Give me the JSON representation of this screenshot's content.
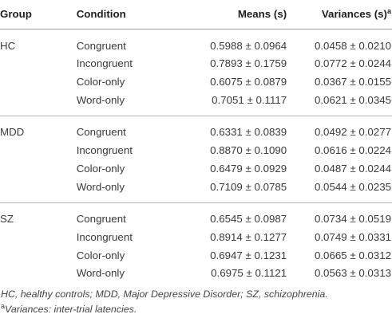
{
  "table": {
    "headers": {
      "group": "Group",
      "condition": "Condition",
      "means": "Means (s)",
      "variances": "Variances (s)",
      "variances_sup": "a"
    },
    "groups": [
      {
        "name": "HC",
        "rows": [
          {
            "condition": "Congruent",
            "mean": "0.5988 ± 0.0964",
            "variance": "0.0458 ± 0.0210"
          },
          {
            "condition": "Incongruent",
            "mean": "0.7893 ± 0.1759",
            "variance": "0.0772 ± 0.0244"
          },
          {
            "condition": "Color-only",
            "mean": "0.6075 ± 0.0879",
            "variance": "0.0367 ± 0.0155"
          },
          {
            "condition": "Word-only",
            "mean": "0.7051 ± 0.1117",
            "variance": "0.0621 ± 0.0345"
          }
        ]
      },
      {
        "name": "MDD",
        "rows": [
          {
            "condition": "Congruent",
            "mean": "0.6331 ± 0.0839",
            "variance": "0.0492 ± 0.0277"
          },
          {
            "condition": "Incongruent",
            "mean": "0.8870 ± 0.1090",
            "variance": "0.0616 ± 0.0224"
          },
          {
            "condition": "Color-only",
            "mean": "0.6479 ± 0.0929",
            "variance": "0.0487 ± 0.0244"
          },
          {
            "condition": "Word-only",
            "mean": "0.7109 ± 0.0785",
            "variance": "0.0544 ± 0.0235"
          }
        ]
      },
      {
        "name": "SZ",
        "rows": [
          {
            "condition": "Congruent",
            "mean": "0.6545 ± 0.0987",
            "variance": "0.0734 ± 0.0519"
          },
          {
            "condition": "Incongruent",
            "mean": "0.8914 ± 0.1277",
            "variance": "0.0749 ± 0.0331"
          },
          {
            "condition": "Color-only",
            "mean": "0.6947 ± 0.1231",
            "variance": "0.0665 ± 0.0312"
          },
          {
            "condition": "Word-only",
            "mean": "0.6975 ± 0.1121",
            "variance": "0.0563 ± 0.0313"
          }
        ]
      }
    ]
  },
  "footnotes": {
    "abbreviations": "HC, healthy controls; MDD, Major Depressive Disorder; SZ, schizophrenia.",
    "variances_marker": "a",
    "variances_note": "Variances: inter-trial latencies."
  }
}
